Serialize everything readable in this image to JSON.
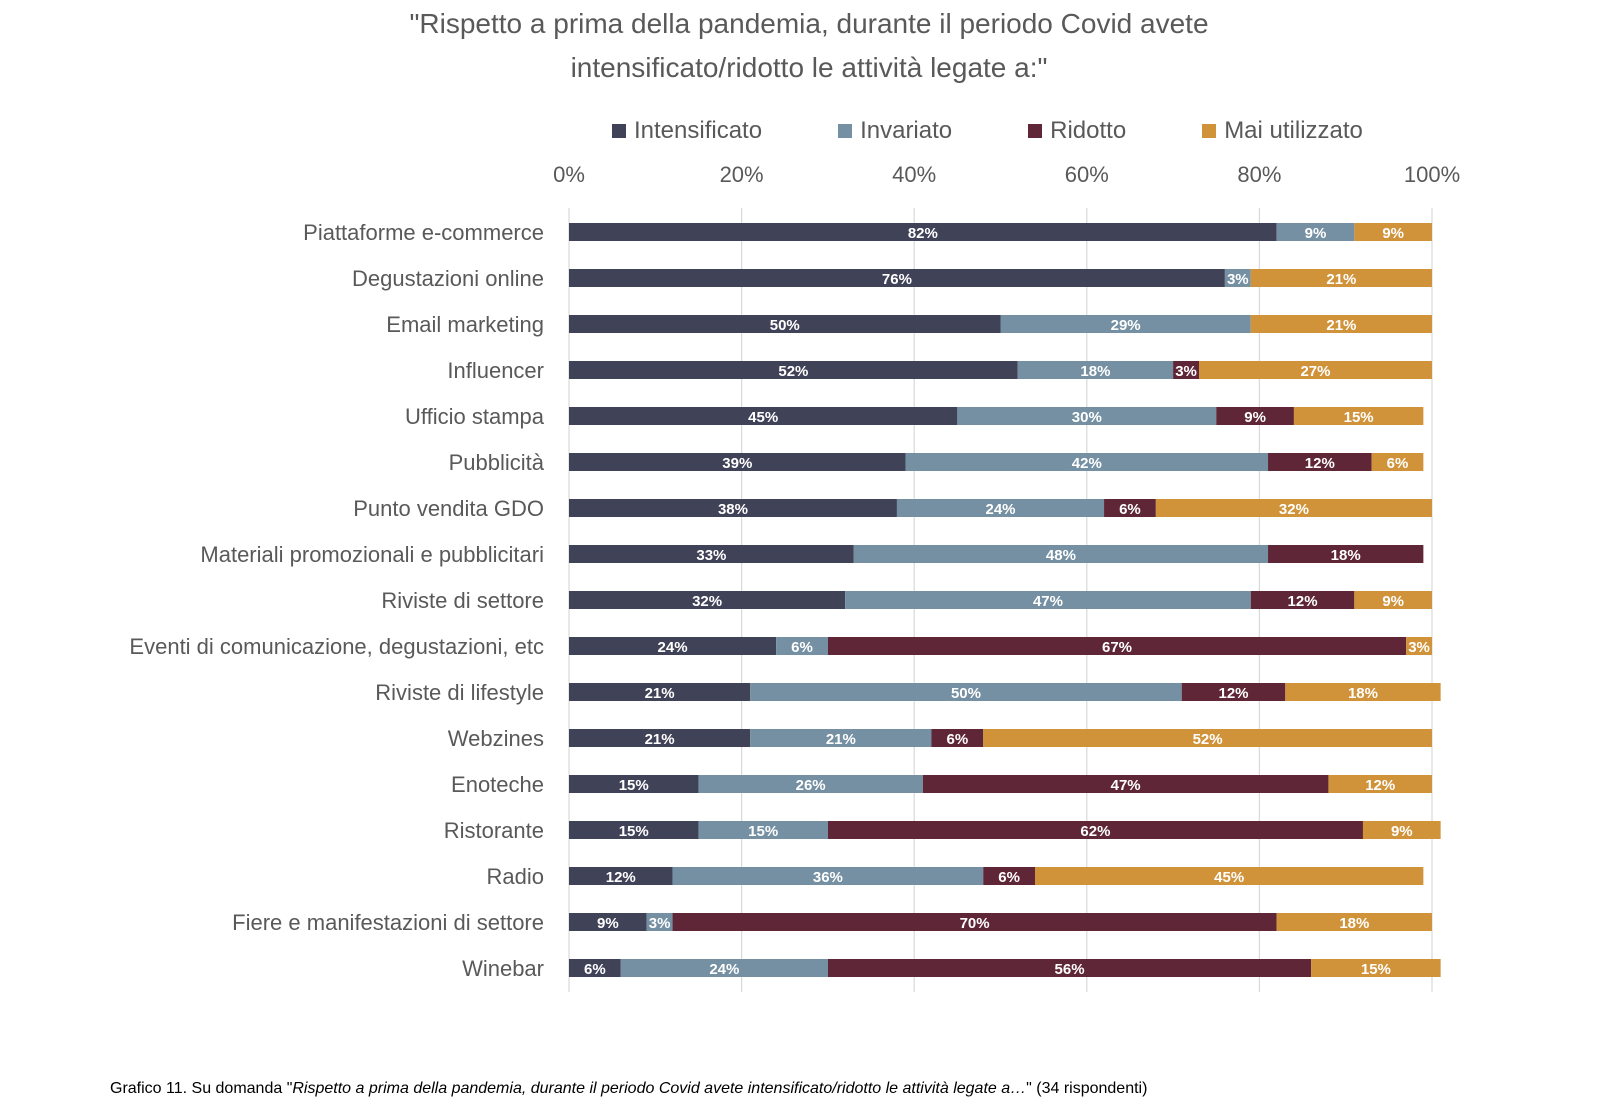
{
  "title": {
    "line1": "\"Rispetto a prima della pandemia, durante il periodo Covid avete",
    "line2": "intensificato/ridotto le attività legate a:\""
  },
  "caption": {
    "prefix": "Grafico 11. Su domanda \"",
    "italic": "Rispetto a prima della pandemia, durante il periodo Covid avete intensificato/ridotto le attività legate a…",
    "suffix": "\" (34 rispondenti)"
  },
  "chart_data": {
    "type": "bar",
    "orientation": "horizontal",
    "stacked": true,
    "title": "\"Rispetto a prima della pandemia, durante il periodo Covid avete intensificato/ridotto le attività legate a:\"",
    "xlim": [
      0,
      100
    ],
    "x_ticks": [
      "0%",
      "20%",
      "40%",
      "60%",
      "80%",
      "100%"
    ],
    "x_tick_values": [
      0,
      20,
      40,
      60,
      80,
      100
    ],
    "legend_position": "top",
    "categories": [
      "Piattaforme e-commerce",
      "Degustazioni online",
      "Email marketing",
      "Influencer",
      "Ufficio stampa",
      "Pubblicità",
      "Punto vendita GDO",
      "Materiali promozionali e pubblicitari",
      "Riviste di settore",
      "Eventi di comunicazione, degustazioni, etc",
      "Riviste di lifestyle",
      "Webzines",
      "Enoteche",
      "Ristorante",
      "Radio",
      "Fiere e manifestazioni di settore",
      "Winebar"
    ],
    "series": [
      {
        "name": "Intensificato",
        "color": "#404258",
        "label_color": "#ffffff",
        "values": [
          82,
          76,
          50,
          52,
          45,
          39,
          38,
          33,
          32,
          24,
          21,
          21,
          15,
          15,
          12,
          9,
          6
        ]
      },
      {
        "name": "Invariato",
        "color": "#7490a2",
        "label_color": "#ffffff",
        "values": [
          9,
          3,
          29,
          18,
          30,
          42,
          24,
          48,
          47,
          6,
          50,
          21,
          26,
          15,
          36,
          3,
          24
        ]
      },
      {
        "name": "Ridotto",
        "color": "#5e2636",
        "label_color": "#ffffff",
        "values": [
          0,
          0,
          0,
          3,
          9,
          12,
          6,
          18,
          12,
          67,
          12,
          6,
          47,
          62,
          6,
          70,
          56
        ]
      },
      {
        "name": "Mai utilizzato",
        "color": "#d0933a",
        "label_color": "#ffffff",
        "values": [
          9,
          21,
          21,
          27,
          15,
          6,
          32,
          0,
          9,
          3,
          18,
          52,
          12,
          9,
          45,
          18,
          15
        ]
      }
    ]
  }
}
